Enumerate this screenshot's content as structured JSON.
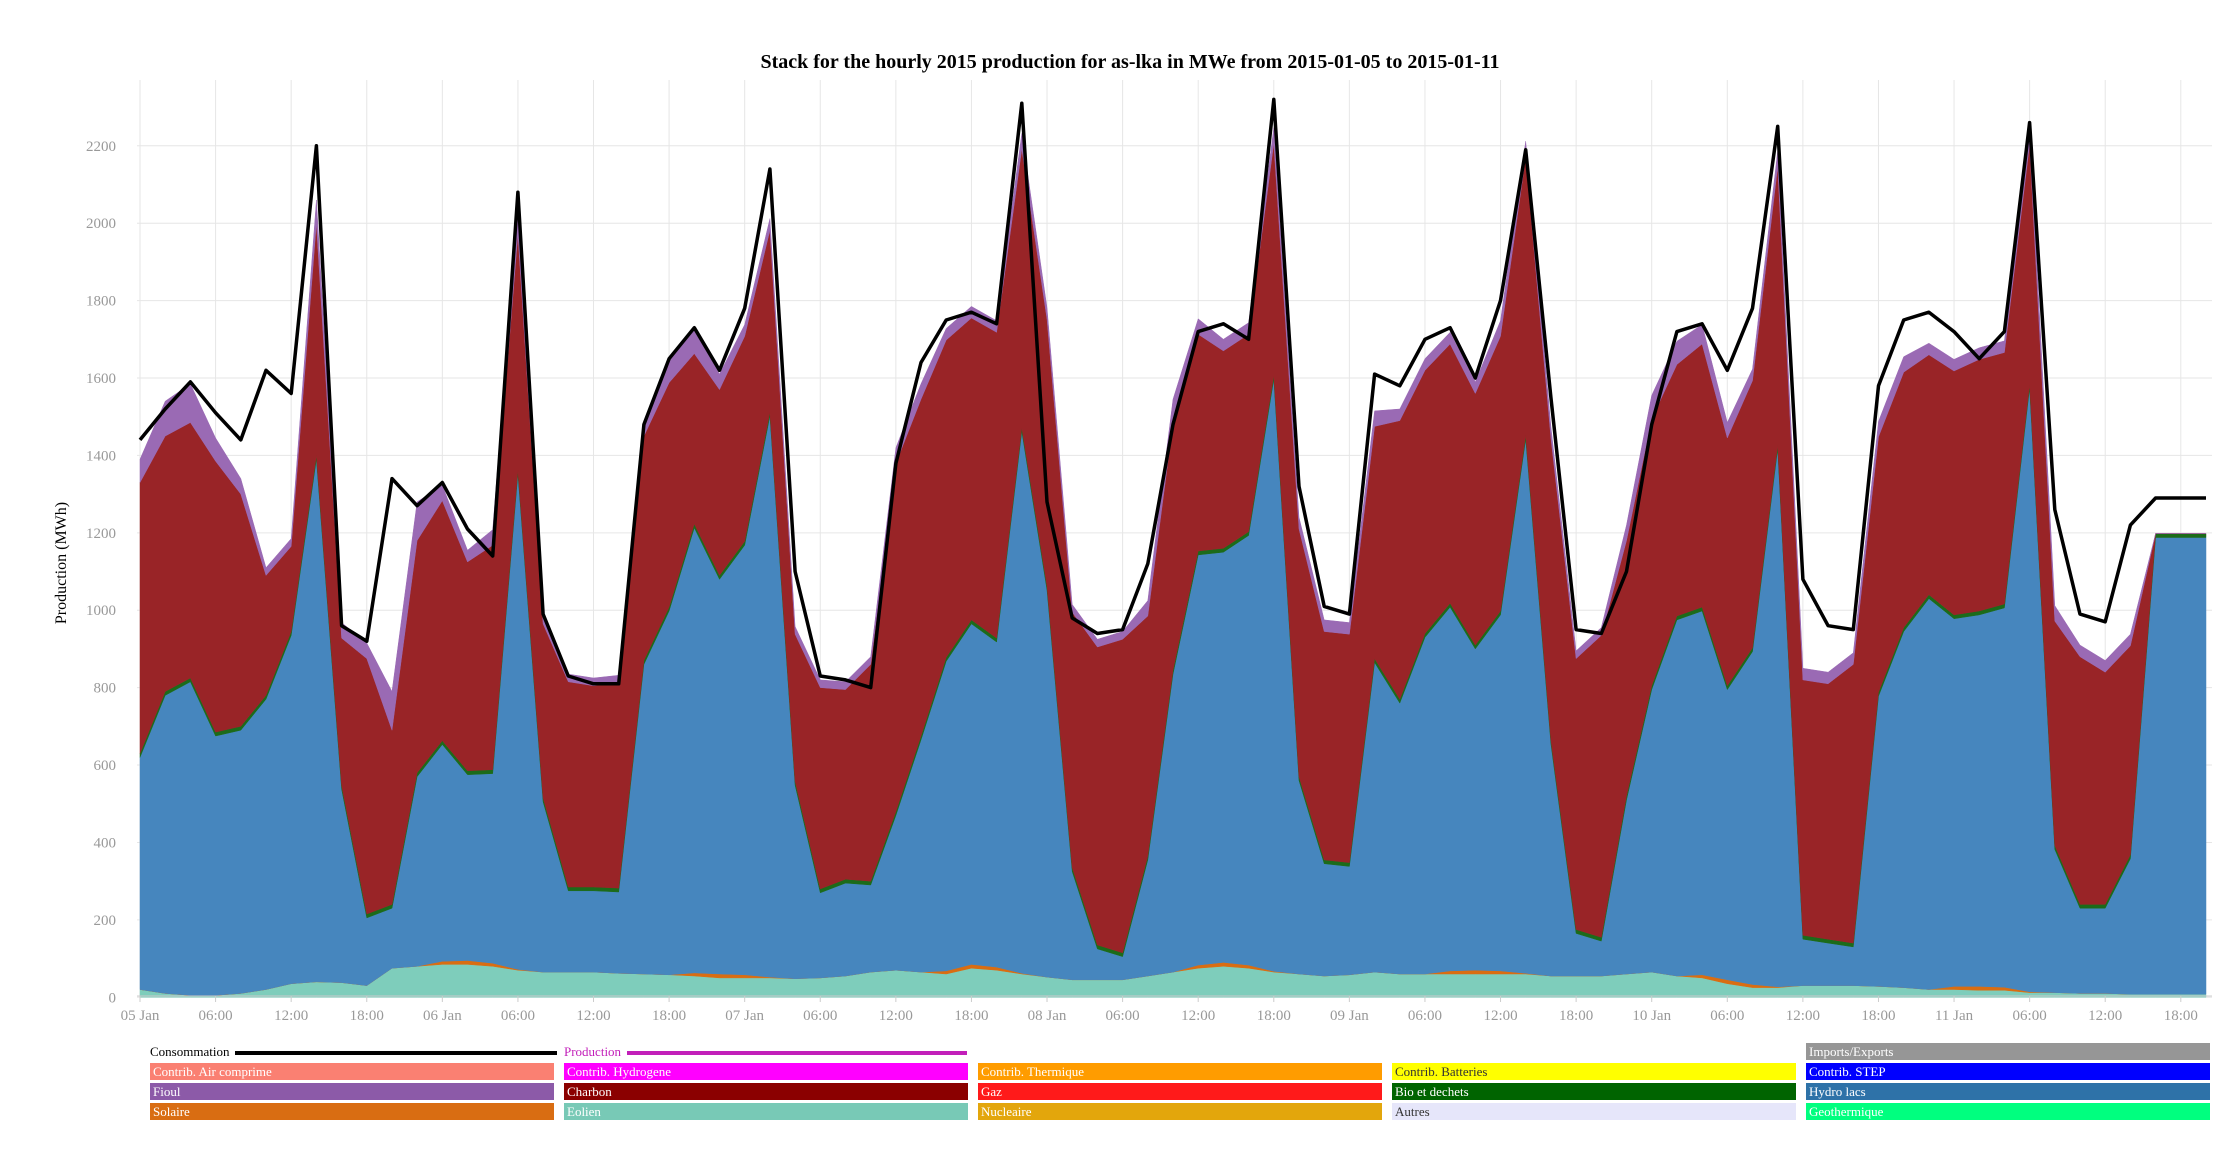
{
  "chart_data": {
    "type": "area",
    "stacked": true,
    "title": "Stack for the hourly 2015 production for as-lka in MWe from 2015-01-05 to 2015-01-11",
    "ylabel": "Production (MWh)",
    "xlabel": "",
    "ylim": [
      -20,
      2370
    ],
    "yticks": [
      0,
      200,
      400,
      600,
      800,
      1000,
      1200,
      1400,
      1600,
      1800,
      2000,
      2200
    ],
    "x_start": "2015-01-05 00:00",
    "x_step_hours": 2,
    "xticks": [
      {
        "h": 0,
        "label": "05 Jan"
      },
      {
        "h": 6,
        "label": "06:00"
      },
      {
        "h": 12,
        "label": "12:00"
      },
      {
        "h": 18,
        "label": "18:00"
      },
      {
        "h": 24,
        "label": "06 Jan"
      },
      {
        "h": 30,
        "label": "06:00"
      },
      {
        "h": 36,
        "label": "12:00"
      },
      {
        "h": 42,
        "label": "18:00"
      },
      {
        "h": 48,
        "label": "07 Jan"
      },
      {
        "h": 54,
        "label": "06:00"
      },
      {
        "h": 60,
        "label": "12:00"
      },
      {
        "h": 66,
        "label": "18:00"
      },
      {
        "h": 72,
        "label": "08 Jan"
      },
      {
        "h": 78,
        "label": "06:00"
      },
      {
        "h": 84,
        "label": "12:00"
      },
      {
        "h": 90,
        "label": "18:00"
      },
      {
        "h": 96,
        "label": "09 Jan"
      },
      {
        "h": 102,
        "label": "06:00"
      },
      {
        "h": 108,
        "label": "12:00"
      },
      {
        "h": 114,
        "label": "18:00"
      },
      {
        "h": 120,
        "label": "10 Jan"
      },
      {
        "h": 126,
        "label": "06:00"
      },
      {
        "h": 132,
        "label": "12:00"
      },
      {
        "h": 138,
        "label": "18:00"
      },
      {
        "h": 144,
        "label": "11 Jan"
      },
      {
        "h": 150,
        "label": "06:00"
      },
      {
        "h": 156,
        "label": "12:00"
      },
      {
        "h": 162,
        "label": "18:00"
      }
    ],
    "series": [
      {
        "name": "Eolien",
        "color": "#7ecdbb",
        "values": [
          20,
          10,
          5,
          5,
          10,
          20,
          35,
          40,
          38,
          30,
          75,
          80,
          85,
          85,
          80,
          70,
          65,
          65,
          65,
          62,
          60,
          58,
          55,
          50,
          50,
          50,
          48,
          50,
          55,
          65,
          70,
          65,
          60,
          75,
          70,
          60,
          52,
          45,
          45,
          45,
          55,
          65,
          75,
          80,
          75,
          65,
          60,
          55,
          58,
          65,
          60,
          60,
          60,
          60,
          60,
          60,
          55,
          55,
          55,
          60,
          65,
          55,
          50,
          35,
          25,
          25,
          30,
          30,
          30,
          28,
          25,
          20,
          20,
          18,
          18,
          12,
          12,
          10,
          10,
          8,
          8,
          8,
          8
        ]
      },
      {
        "name": "Solaire",
        "color": "#d96d12",
        "values": [
          0,
          0,
          0,
          0,
          0,
          0,
          0,
          0,
          0,
          0,
          0,
          0,
          8,
          10,
          8,
          2,
          0,
          0,
          0,
          0,
          0,
          0,
          8,
          10,
          8,
          2,
          0,
          0,
          0,
          0,
          0,
          0,
          8,
          10,
          8,
          2,
          0,
          0,
          0,
          0,
          0,
          0,
          8,
          10,
          8,
          2,
          0,
          0,
          0,
          0,
          0,
          0,
          8,
          10,
          8,
          2,
          0,
          0,
          0,
          0,
          0,
          0,
          8,
          10,
          8,
          2,
          0,
          0,
          0,
          0,
          0,
          0,
          8,
          10,
          8,
          2,
          0,
          0,
          0,
          0,
          0,
          0,
          0
        ]
      },
      {
        "name": "Hydro lacs",
        "color": "#4686be",
        "values": [
          600,
          770,
          810,
          670,
          680,
          750,
          900,
          1350,
          500,
          175,
          155,
          490,
          560,
          480,
          490,
          1280,
          440,
          210,
          210,
          210,
          800,
          940,
          1150,
          1020,
          1110,
          1450,
          500,
          220,
          240,
          225,
          400,
          600,
          800,
          880,
          840,
          1400,
          1000,
          280,
          80,
          60,
          300,
          770,
          1060,
          1060,
          1110,
          1530,
          500,
          290,
          280,
          800,
          700,
          870,
          940,
          830,
          920,
          1380,
          600,
          110,
          90,
          450,
          730,
          920,
          940,
          750,
          860,
          1390,
          120,
          110,
          100,
          750,
          920,
          1010,
          950,
          960,
          980,
          1560,
          370,
          220,
          220,
          350,
          1180,
          1180,
          1180
        ]
      },
      {
        "name": "Bio et dechets",
        "color": "#1c6b1a",
        "values": [
          10,
          10,
          10,
          10,
          10,
          10,
          10,
          10,
          10,
          10,
          10,
          10,
          10,
          10,
          10,
          10,
          10,
          10,
          10,
          10,
          10,
          10,
          10,
          10,
          10,
          10,
          10,
          10,
          10,
          10,
          10,
          10,
          10,
          10,
          10,
          10,
          10,
          10,
          10,
          10,
          10,
          10,
          10,
          10,
          10,
          10,
          10,
          10,
          10,
          10,
          10,
          10,
          10,
          10,
          10,
          10,
          10,
          10,
          10,
          10,
          10,
          10,
          10,
          10,
          10,
          10,
          10,
          10,
          10,
          10,
          10,
          10,
          10,
          10,
          10,
          10,
          10,
          10,
          10,
          10,
          10,
          10,
          10
        ]
      },
      {
        "name": "Charbon",
        "color": "#992427",
        "values": [
          700,
          660,
          660,
          700,
          600,
          310,
          220,
          600,
          380,
          660,
          450,
          600,
          620,
          540,
          580,
          610,
          450,
          530,
          520,
          530,
          580,
          580,
          440,
          480,
          530,
          470,
          380,
          520,
          490,
          560,
          900,
          870,
          820,
          780,
          790,
          720,
          690,
          660,
          770,
          810,
          620,
          640,
          560,
          510,
          510,
          600,
          640,
          590,
          590,
          600,
          720,
          680,
          670,
          650,
          710,
          720,
          780,
          700,
          780,
          660,
          690,
          650,
          680,
          640,
          690,
          720,
          660,
          660,
          720,
          660,
          660,
          620,
          630,
          650,
          650,
          620,
          580,
          640,
          600,
          540,
          0,
          0,
          0
        ]
      },
      {
        "name": "Fioul",
        "color": "#9a6ab4",
        "values": [
          60,
          90,
          100,
          60,
          40,
          20,
          20,
          60,
          40,
          40,
          100,
          100,
          40,
          30,
          40,
          70,
          20,
          20,
          20,
          20,
          40,
          60,
          60,
          40,
          30,
          30,
          20,
          20,
          20,
          20,
          40,
          40,
          30,
          30,
          30,
          40,
          30,
          20,
          20,
          20,
          40,
          60,
          40,
          30,
          30,
          40,
          30,
          30,
          30,
          40,
          30,
          30,
          30,
          30,
          40,
          40,
          30,
          20,
          20,
          40,
          60,
          60,
          50,
          40,
          30,
          40,
          30,
          30,
          30,
          40,
          40,
          30,
          30,
          30,
          30,
          50,
          40,
          30,
          30,
          30,
          0,
          0,
          0
        ]
      }
    ],
    "consommation": [
      1440,
      1520,
      1590,
      1510,
      1440,
      1620,
      1560,
      2200,
      960,
      920,
      1340,
      1270,
      1330,
      1210,
      1140,
      2080,
      990,
      830,
      810,
      810,
      1480,
      1650,
      1730,
      1620,
      1780,
      2140,
      1100,
      830,
      820,
      800,
      1380,
      1640,
      1750,
      1770,
      1740,
      2310,
      1280,
      980,
      940,
      950,
      1120,
      1480,
      1720,
      1740,
      1700,
      2320,
      1320,
      1010,
      990,
      1610,
      1580,
      1700,
      1730,
      1600,
      1800,
      2190,
      1550,
      950,
      940,
      1100,
      1480,
      1720,
      1740,
      1620,
      1780,
      2250,
      1080,
      960,
      950,
      1580,
      1750,
      1770,
      1720,
      1650,
      1720,
      2260,
      1260,
      990,
      970,
      1220,
      1290,
      1290,
      1290
    ],
    "legend": [
      {
        "label": "Consommation",
        "kind": "line",
        "color": "#000000"
      },
      {
        "label": "Production",
        "kind": "line",
        "color": "#c21fb9"
      },
      {
        "label": "Imports/Exports",
        "kind": "box",
        "color": "#969696"
      },
      {
        "label": "Contrib. Air comprime",
        "kind": "box",
        "color": "#fa8072"
      },
      {
        "label": "Contrib. Hydrogene",
        "kind": "box",
        "color": "#ff00ff"
      },
      {
        "label": "Contrib. Thermique",
        "kind": "box",
        "color": "#ff9c00"
      },
      {
        "label": "Contrib. Batteries",
        "kind": "box",
        "color": "#ffff00"
      },
      {
        "label": "Contrib. STEP",
        "kind": "box",
        "color": "#0000ff"
      },
      {
        "label": "Fioul",
        "kind": "box",
        "color": "#8c5aa8"
      },
      {
        "label": "Charbon",
        "kind": "box",
        "color": "#8b0000"
      },
      {
        "label": "Gaz",
        "kind": "box",
        "color": "#ff1a1a"
      },
      {
        "label": "Bio et dechets",
        "kind": "box",
        "color": "#006400"
      },
      {
        "label": "Hydro lacs",
        "kind": "box",
        "color": "#2e72a8"
      },
      {
        "label": "Solaire",
        "kind": "box",
        "color": "#d96d12"
      },
      {
        "label": "Eolien",
        "kind": "box",
        "color": "#78c9b6"
      },
      {
        "label": "Nucleaire",
        "kind": "box",
        "color": "#e3a60c"
      },
      {
        "label": "Autres",
        "kind": "box",
        "color": "#e6e6fa"
      },
      {
        "label": "Geothermique",
        "kind": "box",
        "color": "#00ff7f"
      }
    ]
  }
}
